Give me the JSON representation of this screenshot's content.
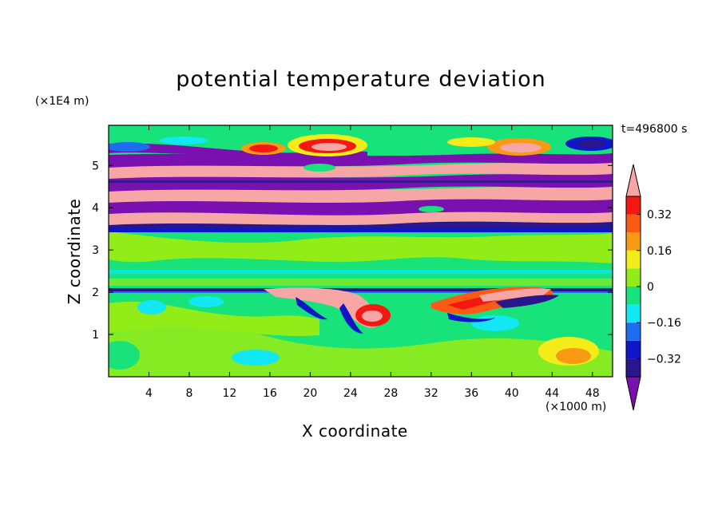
{
  "chart_data": {
    "type": "heatmap",
    "title": "potential temperature deviation",
    "xlabel": "X coordinate",
    "ylabel": "Z coordinate",
    "x_unit_label": "(×1000 m)",
    "y_unit_label": "(×1E4 m)",
    "time_label": "t=496800 s",
    "xlim": [
      0,
      50
    ],
    "ylim": [
      0,
      5.95
    ],
    "x_ticks": [
      4,
      8,
      12,
      16,
      20,
      24,
      28,
      32,
      36,
      40,
      44,
      48
    ],
    "y_ticks": [
      1,
      2,
      3,
      4,
      5
    ],
    "colorbar": {
      "levels": [
        -0.4,
        -0.32,
        -0.24,
        -0.16,
        -0.08,
        0,
        0.08,
        0.16,
        0.24,
        0.32,
        0.4
      ],
      "tick_labels": [
        "0.32",
        "0.16",
        "0",
        "−0.16",
        "−0.32"
      ],
      "tick_values": [
        0.32,
        0.16,
        0,
        -0.16,
        -0.32
      ],
      "colors": [
        "#7b10b0",
        "#2a168c",
        "#0f16c8",
        "#1e6cf0",
        "#11e8f4",
        "#18e27a",
        "#92ec18",
        "#f4ec18",
        "#f89a14",
        "#fb5a14",
        "#f41812",
        "#f7a6a6"
      ]
    }
  }
}
